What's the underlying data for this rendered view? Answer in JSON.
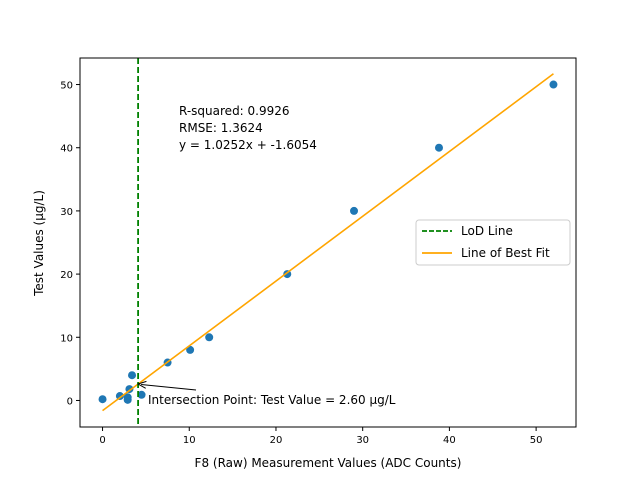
{
  "chart_data": {
    "type": "scatter",
    "xlabel": "F8 (Raw) Measurement Values (ADC Counts)",
    "ylabel": "Test Values (µg/L)",
    "xlim": [
      -2.6,
      54.6
    ],
    "ylim": [
      -4.2,
      54.2
    ],
    "xticks": [
      0,
      10,
      20,
      30,
      40,
      50
    ],
    "yticks": [
      0,
      10,
      20,
      30,
      40,
      50
    ],
    "grid": false,
    "legend_position": "center-right",
    "points": [
      {
        "x": 0.0,
        "y": 0.2
      },
      {
        "x": 2.0,
        "y": 0.7
      },
      {
        "x": 2.9,
        "y": 0.5
      },
      {
        "x": 2.9,
        "y": 0.1
      },
      {
        "x": 3.1,
        "y": 1.8
      },
      {
        "x": 3.4,
        "y": 4.0
      },
      {
        "x": 4.5,
        "y": 0.9
      },
      {
        "x": 7.5,
        "y": 6.0
      },
      {
        "x": 10.1,
        "y": 8.0
      },
      {
        "x": 12.3,
        "y": 10.0
      },
      {
        "x": 21.3,
        "y": 20.0
      },
      {
        "x": 29.0,
        "y": 30.0
      },
      {
        "x": 38.8,
        "y": 40.0
      },
      {
        "x": 52.0,
        "y": 50.0
      }
    ],
    "fit_line": {
      "slope": 1.0252,
      "intercept": -1.6054,
      "x_range": [
        0,
        52.0
      ]
    },
    "lod_x": 4.1,
    "intersection_point": {
      "x": 4.1,
      "y": 2.6
    },
    "colors": {
      "points": "#1f77b4",
      "fit_line": "#ffa500",
      "lod_line": "#008000",
      "frame": "#000000"
    },
    "legend": [
      {
        "label": "LoD Line",
        "style": "dashed",
        "color": "#008000"
      },
      {
        "label": "Line of Best Fit",
        "style": "solid",
        "color": "#ffa500"
      }
    ],
    "stats_text": [
      "R-squared: 0.9926",
      "RMSE: 1.3624",
      "y = 1.0252x + -1.6054"
    ],
    "intersection_label": "Intersection Point: Test Value = 2.60 µg/L"
  }
}
